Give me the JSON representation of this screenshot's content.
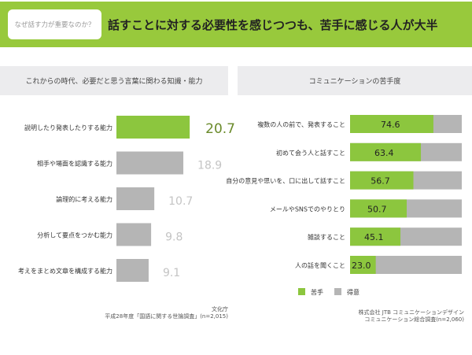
{
  "header": {
    "tag": "なぜ話す力が重要なのか？",
    "title": "話すことに対する必要性を感じつつも、苦手に感じる人が大半"
  },
  "colors": {
    "green": "#8cc63e",
    "gray": "#b5b5b5",
    "header": "#98c93c"
  },
  "chart_data": [
    {
      "type": "bar",
      "orientation": "horizontal",
      "title": "これからの時代、必要だと思う言葉に関わる知識・能力",
      "categories": [
        "説明したり発表したりする能力",
        "相手や場面を認識する能力",
        "論理的に考える能力",
        "分析して要点をつかむ能力",
        "考えをまとめ文章を構成する能力"
      ],
      "values": [
        20.7,
        18.9,
        10.7,
        9.8,
        9.1
      ],
      "value_labels": [
        "20.7",
        "18.9",
        "10.7",
        "9.8",
        "9.1"
      ],
      "highlight_index": 0,
      "source": [
        "文化庁",
        "平成28年度「国語に関する世論調査」(n=2,015)"
      ]
    },
    {
      "type": "bar",
      "orientation": "horizontal",
      "stacked": true,
      "title": "コミュニケーションの苦手度",
      "categories": [
        "複数の人の前で、発表すること",
        "初めて会う人と話すこと",
        "自分の意見や思いを、口に出して話すこと",
        "メールやSNSでのやりとり",
        "雑談すること",
        "人の話を聞くこと"
      ],
      "xlim": [
        0,
        100
      ],
      "series": [
        {
          "name": "苦手",
          "values": [
            74.6,
            63.4,
            56.7,
            50.7,
            45.1,
            23.0
          ],
          "labels": [
            "74.6",
            "63.4",
            "56.7",
            "50.7",
            "45.1",
            "23.0"
          ]
        },
        {
          "name": "得意",
          "values": [
            25.4,
            36.6,
            43.3,
            49.3,
            54.9,
            77.0
          ]
        }
      ],
      "legend": "bottom",
      "source": [
        "株式会社 JTB コミュニケーションデザイン",
        "コミュニケーション総合調査(n=2,060)"
      ]
    }
  ]
}
